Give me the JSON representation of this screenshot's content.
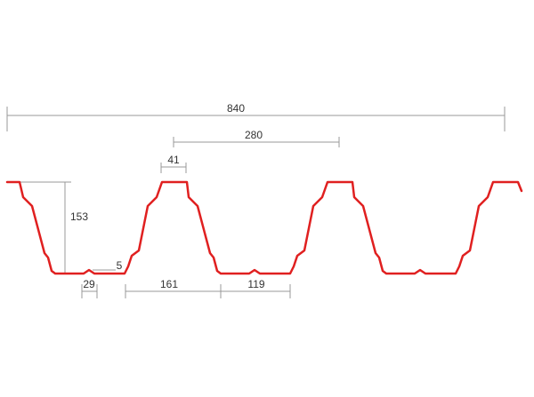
{
  "dimensions": [
    {
      "label": "840"
    },
    {
      "label": "280"
    },
    {
      "label": "41"
    },
    {
      "label": "153"
    },
    {
      "label": "5"
    },
    {
      "label": "29"
    },
    {
      "label": "161"
    },
    {
      "label": "119"
    }
  ]
}
